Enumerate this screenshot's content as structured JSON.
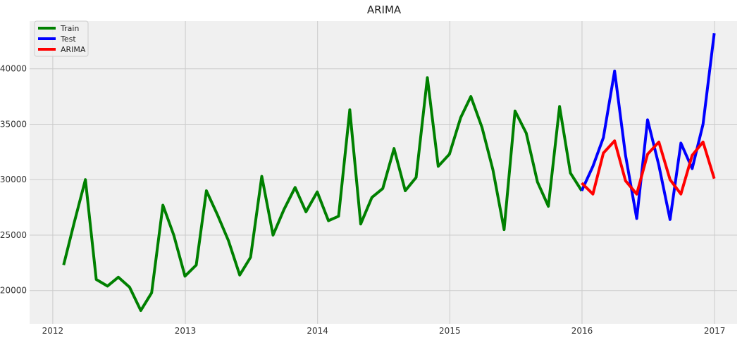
{
  "chart_data": {
    "type": "line",
    "title": "ARIMA",
    "xlabel": "",
    "ylabel": "",
    "x_ticks": [
      "2012",
      "2013",
      "2014",
      "2015",
      "2016",
      "2017"
    ],
    "y_ticks": [
      "20000",
      "25000",
      "30000",
      "35000",
      "40000"
    ],
    "xlim": [
      "2011-10-29",
      "2017-03-04"
    ],
    "ylim": [
      17000,
      44300
    ],
    "grid": true,
    "legend_position": "top-left",
    "series": [
      {
        "name": "Train",
        "color": "#008000",
        "x": [
          "2012-01-31",
          "2012-02-29",
          "2012-03-31",
          "2012-04-30",
          "2012-05-31",
          "2012-06-30",
          "2012-07-31",
          "2012-08-31",
          "2012-09-30",
          "2012-10-31",
          "2012-11-30",
          "2012-12-31",
          "2013-01-31",
          "2013-02-28",
          "2013-03-31",
          "2013-04-30",
          "2013-05-31",
          "2013-06-30",
          "2013-07-31",
          "2013-08-31",
          "2013-09-30",
          "2013-10-31",
          "2013-11-30",
          "2013-12-31",
          "2014-01-31",
          "2014-02-28",
          "2014-03-31",
          "2014-04-30",
          "2014-05-31",
          "2014-06-30",
          "2014-07-31",
          "2014-08-31",
          "2014-09-30",
          "2014-10-31",
          "2014-11-30",
          "2014-12-31",
          "2015-01-31",
          "2015-02-28",
          "2015-03-31",
          "2015-04-30",
          "2015-05-31",
          "2015-06-30",
          "2015-07-31",
          "2015-08-31",
          "2015-09-30",
          "2015-10-31",
          "2015-11-30",
          "2015-12-31"
        ],
        "values": [
          22300,
          26100,
          30000,
          21000,
          20400,
          21200,
          20300,
          18200,
          19800,
          27700,
          25000,
          21300,
          22300,
          29000,
          26800,
          24500,
          21400,
          23000,
          30300,
          25000,
          27300,
          29300,
          27100,
          28900,
          26300,
          26700,
          36300,
          26000,
          28400,
          29200,
          32800,
          29000,
          30200,
          39200,
          31200,
          32300,
          35600,
          37500,
          34700,
          30900,
          25500,
          36200,
          34200,
          29800,
          27600,
          36600,
          30600,
          29000
        ]
      },
      {
        "name": "Test",
        "color": "#0000ff",
        "x": [
          "2015-12-31",
          "2016-01-31",
          "2016-02-29",
          "2016-03-31",
          "2016-04-30",
          "2016-05-31",
          "2016-06-30",
          "2016-07-31",
          "2016-08-31",
          "2016-09-30",
          "2016-10-31",
          "2016-11-30",
          "2016-12-31"
        ],
        "values": [
          29000,
          31200,
          33800,
          39800,
          32200,
          26500,
          35400,
          31300,
          26400,
          33300,
          31000,
          35000,
          43200
        ]
      },
      {
        "name": "ARIMA",
        "color": "#ff0000",
        "x": [
          "2015-12-31",
          "2016-01-31",
          "2016-02-29",
          "2016-03-31",
          "2016-04-30",
          "2016-05-31",
          "2016-06-30",
          "2016-07-31",
          "2016-08-31",
          "2016-09-30",
          "2016-10-31",
          "2016-11-30",
          "2016-12-31"
        ],
        "values": [
          29700,
          28700,
          32400,
          33500,
          29900,
          28700,
          32300,
          33400,
          30000,
          28700,
          32200,
          33400,
          30100
        ]
      }
    ]
  }
}
